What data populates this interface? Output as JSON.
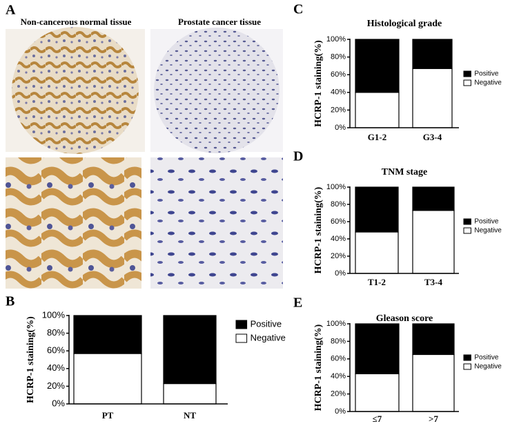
{
  "figure": {
    "panel_labels": [
      "A",
      "B",
      "C",
      "D",
      "E"
    ],
    "image_titles": [
      "Non-cancerous normal tissue",
      "Prostate cancer tissue"
    ]
  },
  "chart_data": [
    {
      "type": "stacked-bar",
      "ylabel": "HCRP-1 staining(%)",
      "categories": [
        "PT",
        "NT"
      ],
      "series": [
        {
          "name": "Negative",
          "color": "#ffffff",
          "values": [
            57,
            23
          ]
        },
        {
          "name": "Positive",
          "color": "#000000",
          "values": [
            43,
            77
          ]
        }
      ],
      "ylim": [
        0,
        100
      ],
      "yticks": [
        {
          "value": 0,
          "label": "0%"
        },
        {
          "value": 20,
          "label": "20%"
        },
        {
          "value": 40,
          "label": "40%"
        },
        {
          "value": 60,
          "label": "60%"
        },
        {
          "value": 80,
          "label": "80%"
        },
        {
          "value": 100,
          "label": "100%"
        }
      ],
      "legend": "right"
    },
    {
      "type": "stacked-bar",
      "title": "Histological grade",
      "ylabel": "HCRP-1 staining(%)",
      "categories": [
        "G1-2",
        "G3-4"
      ],
      "series": [
        {
          "name": "Negative",
          "color": "#ffffff",
          "values": [
            40,
            67
          ]
        },
        {
          "name": "Positive",
          "color": "#000000",
          "values": [
            60,
            33
          ]
        }
      ],
      "ylim": [
        0,
        100
      ],
      "yticks": [
        {
          "value": 0,
          "label": "0%"
        },
        {
          "value": 20,
          "label": "20%"
        },
        {
          "value": 40,
          "label": "40%"
        },
        {
          "value": 60,
          "label": "60%"
        },
        {
          "value": 80,
          "label": "80%"
        },
        {
          "value": 100,
          "label": "100%"
        }
      ],
      "legend": "right"
    },
    {
      "type": "stacked-bar",
      "title": "TNM stage",
      "ylabel": "HCRP-1 staining(%)",
      "categories": [
        "T1-2",
        "T3-4"
      ],
      "series": [
        {
          "name": "Negative",
          "color": "#ffffff",
          "values": [
            48,
            73
          ]
        },
        {
          "name": "Positive",
          "color": "#000000",
          "values": [
            52,
            27
          ]
        }
      ],
      "ylim": [
        0,
        100
      ],
      "yticks": [
        {
          "value": 0,
          "label": "0%"
        },
        {
          "value": 20,
          "label": "20%"
        },
        {
          "value": 40,
          "label": "40%"
        },
        {
          "value": 60,
          "label": "60%"
        },
        {
          "value": 80,
          "label": "80%"
        },
        {
          "value": 100,
          "label": "100%"
        }
      ],
      "legend": "right"
    },
    {
      "type": "stacked-bar",
      "title": "Gleason score",
      "ylabel": "HCRP-1 staining(%)",
      "categories": [
        "≤7",
        ">7"
      ],
      "series": [
        {
          "name": "Negative",
          "color": "#ffffff",
          "values": [
            43,
            65
          ]
        },
        {
          "name": "Positive",
          "color": "#000000",
          "values": [
            57,
            35
          ]
        }
      ],
      "ylim": [
        0,
        100
      ],
      "yticks": [
        {
          "value": 0,
          "label": "0%"
        },
        {
          "value": 20,
          "label": "20%"
        },
        {
          "value": 40,
          "label": "40%"
        },
        {
          "value": 60,
          "label": "60%"
        },
        {
          "value": 80,
          "label": "80%"
        },
        {
          "value": 100,
          "label": "100%"
        }
      ],
      "legend": "right"
    }
  ]
}
